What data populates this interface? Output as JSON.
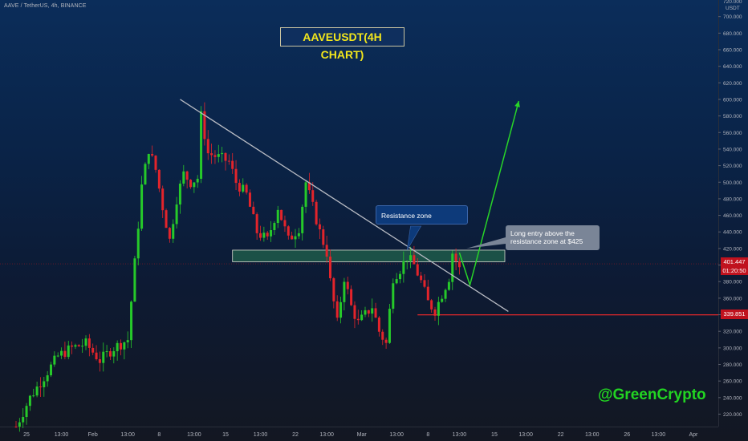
{
  "header": {
    "symbol": "AAVE / TetherUS, 4h, BINANCE",
    "currency": "USDT"
  },
  "colors": {
    "up": "#26c92a",
    "down": "#e3242b",
    "support": "#ff2a2a",
    "arrow": "#28d528",
    "trendline": "#b9bcc4",
    "zone_fill": "#1e5a4a"
  },
  "chart_data": {
    "type": "candlestick",
    "title": "AAVEUSDT(4H CHART)",
    "xlabel": "",
    "ylabel": "",
    "ylim": [
      205,
      720
    ],
    "y_ticks": [
      220,
      240,
      260,
      280,
      300,
      320,
      340,
      360,
      380,
      400,
      420,
      440,
      460,
      480,
      500,
      520,
      540,
      560,
      580,
      600,
      620,
      640,
      660,
      680,
      700
    ],
    "y_tick_labels": [
      "220.000",
      "240.000",
      "260.000",
      "280.000",
      "300.000",
      "320.000",
      "340.000",
      "360.000",
      "380.000",
      "400.000",
      "420.000",
      "440.000",
      "460.000",
      "480.000",
      "500.000",
      "520.000",
      "540.000",
      "560.000",
      "580.000",
      "600.000",
      "620.000",
      "640.000",
      "660.000",
      "680.000",
      "700.000"
    ],
    "top_label": "720.000",
    "x_tick_labels": [
      "25",
      "13:00",
      "Feb",
      "13:00",
      "8",
      "13:00",
      "15",
      "13:00",
      "22",
      "13:00",
      "Mar",
      "13:00",
      "8",
      "13:00",
      "15",
      "13:00",
      "22",
      "13:00",
      "26",
      "13:00",
      "Apr"
    ],
    "x_ticks_bars": [
      3,
      13,
      22,
      32,
      41,
      51,
      60,
      70,
      80,
      89,
      99,
      109,
      118,
      127,
      137,
      146,
      156,
      165,
      175,
      184,
      194
    ],
    "price_path": [
      [
        0,
        205
      ],
      [
        4,
        240
      ],
      [
        8,
        265
      ],
      [
        12,
        290
      ],
      [
        16,
        300
      ],
      [
        20,
        305
      ],
      [
        24,
        285
      ],
      [
        28,
        300
      ],
      [
        32,
        310
      ],
      [
        36,
        495
      ],
      [
        38,
        540
      ],
      [
        40,
        515
      ],
      [
        42,
        470
      ],
      [
        44,
        430
      ],
      [
        46,
        480
      ],
      [
        48,
        510
      ],
      [
        50,
        500
      ],
      [
        52,
        505
      ],
      [
        53,
        580
      ],
      [
        55,
        535
      ],
      [
        58,
        530
      ],
      [
        61,
        525
      ],
      [
        63,
        500
      ],
      [
        66,
        485
      ],
      [
        69,
        440
      ],
      [
        72,
        430
      ],
      [
        75,
        470
      ],
      [
        78,
        430
      ],
      [
        81,
        445
      ],
      [
        83,
        500
      ],
      [
        85,
        470
      ],
      [
        87,
        440
      ],
      [
        89,
        415
      ],
      [
        90,
        380
      ],
      [
        92,
        330
      ],
      [
        94,
        385
      ],
      [
        96,
        350
      ],
      [
        98,
        330
      ],
      [
        100,
        340
      ],
      [
        102,
        350
      ],
      [
        104,
        320
      ],
      [
        106,
        305
      ],
      [
        108,
        385
      ],
      [
        110,
        395
      ],
      [
        112,
        410
      ],
      [
        114,
        400
      ],
      [
        116,
        380
      ],
      [
        118,
        355
      ],
      [
        120,
        345
      ],
      [
        122,
        365
      ],
      [
        124,
        385
      ],
      [
        125,
        415
      ],
      [
        127,
        395
      ]
    ],
    "current_price": "401.447",
    "countdown": "01:20:50",
    "support_level": 339.851,
    "support_label": "339.851",
    "resistance_zone": [
      404,
      418
    ],
    "trendline": [
      [
        47,
        600
      ],
      [
        141,
        344
      ]
    ],
    "projection_arrow": [
      [
        127,
        415
      ],
      [
        130,
        376
      ],
      [
        144,
        598
      ]
    ],
    "annotations": [
      "Resistance zone",
      "Long entry above the resistance zone at $425"
    ],
    "credit": "@GreenCrypto"
  }
}
